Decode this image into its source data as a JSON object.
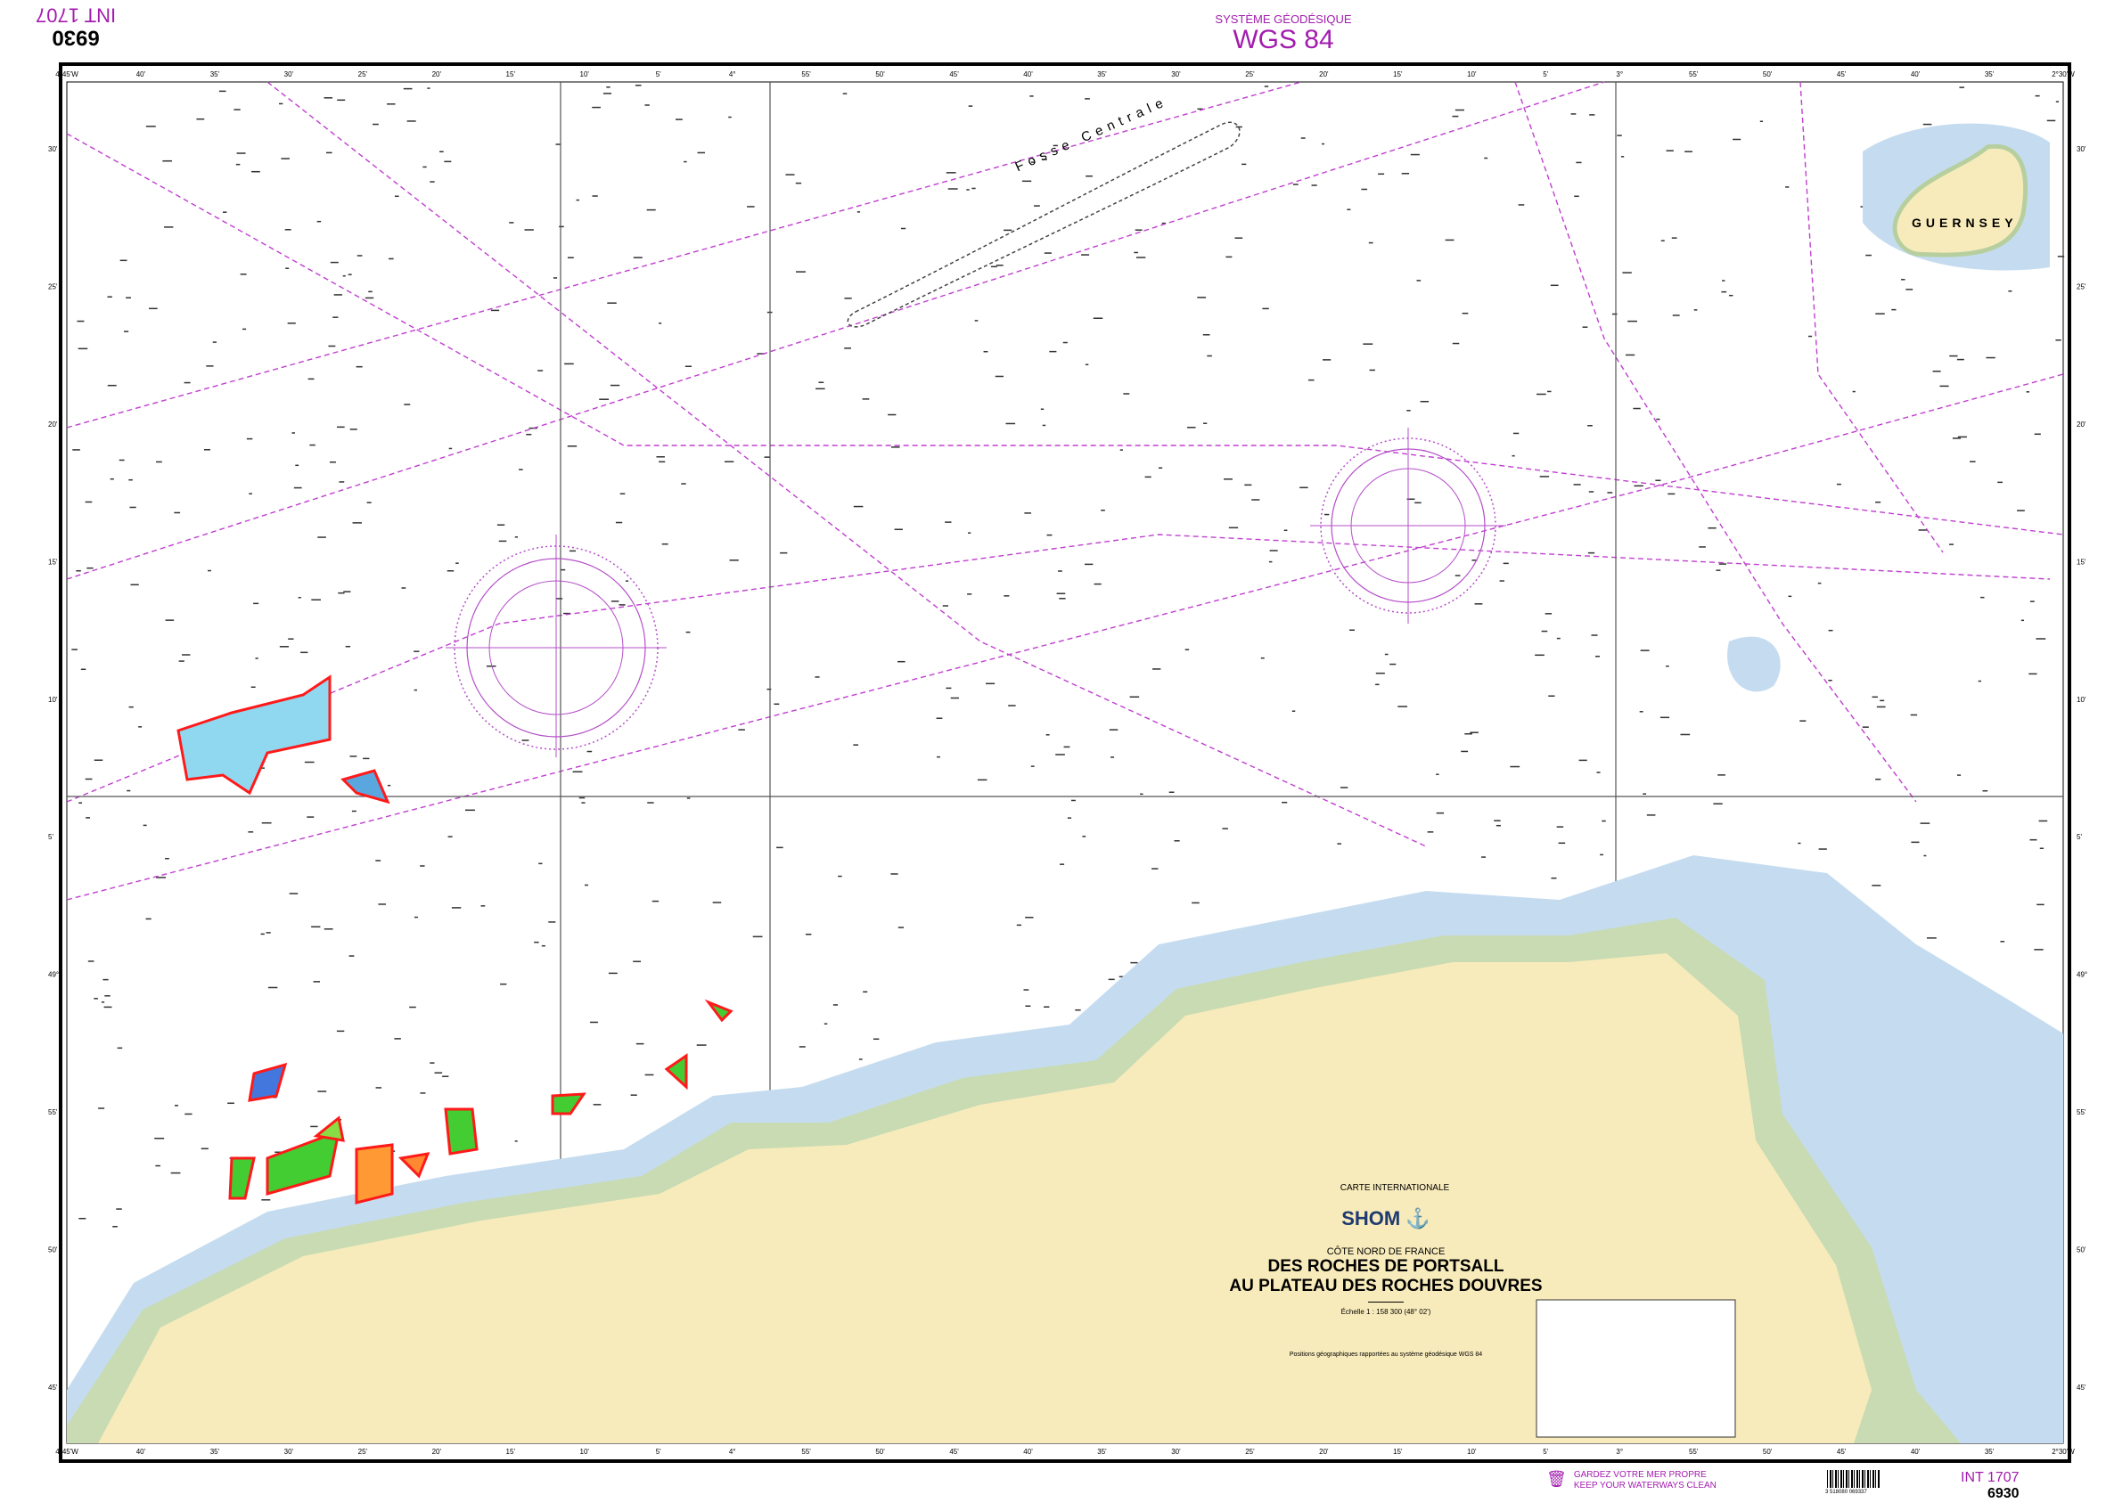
{
  "header": {
    "datum_label": "SYSTÈME GÉODÉSIQUE",
    "datum": "WGS 84",
    "chart_number_inverted": "6930",
    "int_number_inverted": "INT 1707"
  },
  "title_block": {
    "series": "CARTE INTERNATIONALE",
    "publisher_logo": "SHOM",
    "region": "CÔTE NORD DE FRANCE",
    "title_line1": "DES ROCHES DE PORTSALL",
    "title_line2": "AU PLATEAU DES ROCHES DOUVRES",
    "scale": "Échelle 1 : 158 300 (48° 02')",
    "positions_note": "Positions géographiques rapportées au système géodésique WGS 84"
  },
  "map_labels": {
    "island": "GUERNSEY",
    "trench": "Fosse Centrale"
  },
  "longitude_ticks": [
    "4°45'W",
    "40'",
    "35'",
    "30'",
    "25'",
    "20'",
    "15'",
    "10'",
    "5'",
    "4°",
    "55'",
    "50'",
    "45'",
    "40'",
    "35'",
    "30'",
    "25'",
    "20'",
    "15'",
    "10'",
    "5'",
    "3°",
    "55'",
    "50'",
    "45'",
    "40'",
    "35'",
    "2°30'W"
  ],
  "latitude_ticks": [
    "30'",
    "25'",
    "20'",
    "15'",
    "10'",
    "5'",
    "49°",
    "55'",
    "50'",
    "45'"
  ],
  "footer": {
    "slogan_fr": "GARDEZ VOTRE MER PROPRE",
    "slogan_en": "KEEP YOUR WATERWAYS CLEAN",
    "barcode_number": "3 518080 069337",
    "int_number": "INT 1707",
    "chart_number": "6930"
  },
  "colors": {
    "land": "#f8ebbb",
    "shallow": "#c5dcf0",
    "intertidal": "#c8dbb3",
    "magenta": "#a21caf",
    "wind_farm_outline": "#ff1a1a"
  },
  "icons": [
    "compass-rose-icon",
    "shom-logo",
    "anchor-crest-logo",
    "litter-bin-icon",
    "barcode"
  ]
}
